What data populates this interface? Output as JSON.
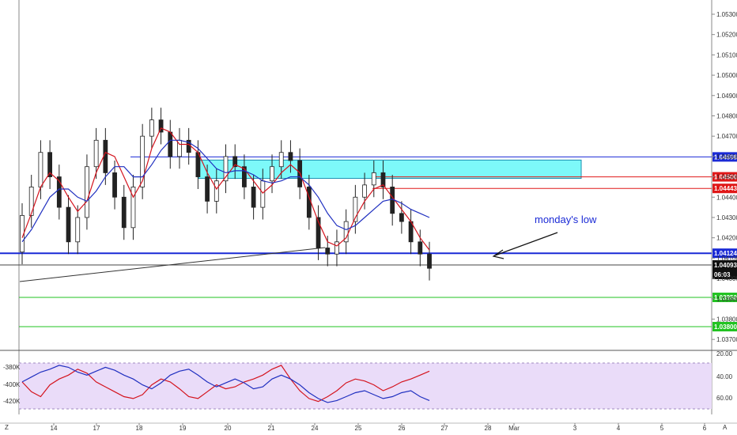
{
  "chart_data": {
    "type": "candlestick",
    "price_axis": {
      "ticks": [
        "1.05300",
        "1.05200",
        "1.05100",
        "1.05000",
        "1.04900",
        "1.04800",
        "1.04700",
        "1.04600",
        "1.04500",
        "1.04400",
        "1.04300",
        "1.04200",
        "1.04100",
        "1.04000",
        "1.03900",
        "1.03800",
        "1.03700"
      ],
      "range": [
        1.0365,
        1.0537
      ]
    },
    "time_axis": {
      "ticks": [
        "14",
        "17",
        "18",
        "19",
        "20",
        "21",
        "24",
        "25",
        "26",
        "27",
        "28",
        "Mar",
        "3",
        "4",
        "5",
        "6"
      ]
    },
    "candles": [
      [
        1.0413,
        1.0431
      ],
      [
        1.0431,
        1.0445
      ],
      [
        1.0445,
        1.0462
      ],
      [
        1.0462,
        1.045
      ],
      [
        1.045,
        1.0435
      ],
      [
        1.0435,
        1.0418
      ],
      [
        1.0418,
        1.043
      ],
      [
        1.043,
        1.0455
      ],
      [
        1.0455,
        1.0468
      ],
      [
        1.0468,
        1.0452
      ],
      [
        1.0452,
        1.044
      ],
      [
        1.044,
        1.0425
      ],
      [
        1.0425,
        1.0445
      ],
      [
        1.0445,
        1.047
      ],
      [
        1.047,
        1.0478
      ],
      [
        1.0478,
        1.0472
      ],
      [
        1.0472,
        1.046
      ],
      [
        1.046,
        1.0468
      ],
      [
        1.0468,
        1.0462
      ],
      [
        1.0462,
        1.045
      ],
      [
        1.045,
        1.0438
      ],
      [
        1.0438,
        1.0448
      ],
      [
        1.0448,
        1.046
      ],
      [
        1.046,
        1.0455
      ],
      [
        1.0455,
        1.0445
      ],
      [
        1.0445,
        1.0435
      ],
      [
        1.0435,
        1.0448
      ],
      [
        1.0448,
        1.0455
      ],
      [
        1.0455,
        1.0462
      ],
      [
        1.0462,
        1.0458
      ],
      [
        1.0458,
        1.0445
      ],
      [
        1.0445,
        1.043
      ],
      [
        1.043,
        1.0415
      ],
      [
        1.0415,
        1.0412
      ],
      [
        1.0412,
        1.0418
      ],
      [
        1.0418,
        1.0428
      ],
      [
        1.0428,
        1.044
      ],
      [
        1.044,
        1.0446
      ],
      [
        1.0446,
        1.0452
      ],
      [
        1.0452,
        1.0445
      ],
      [
        1.0445,
        1.0432
      ],
      [
        1.0432,
        1.0428
      ],
      [
        1.0428,
        1.0418
      ],
      [
        1.0418,
        1.0412
      ],
      [
        1.0412,
        1.0405
      ]
    ],
    "ma_red": [
      1.042,
      1.0432,
      1.0445,
      1.0452,
      1.0448,
      1.044,
      1.0433,
      1.0438,
      1.0452,
      1.0462,
      1.046,
      1.045,
      1.044,
      1.0448,
      1.0464,
      1.0474,
      1.0472,
      1.0466,
      1.0466,
      1.0462,
      1.0452,
      1.0444,
      1.045,
      1.0456,
      1.0454,
      1.0448,
      1.0442,
      1.0446,
      1.0452,
      1.0456,
      1.0452,
      1.044,
      1.0428,
      1.0418,
      1.0416,
      1.042,
      1.043,
      1.0438,
      1.0444,
      1.0446,
      1.044,
      1.0434,
      1.0428,
      1.042,
      1.0414
    ],
    "ma_blue": [
      1.0418,
      1.0424,
      1.0432,
      1.044,
      1.0444,
      1.0444,
      1.044,
      1.0438,
      1.0443,
      1.045,
      1.0455,
      1.0455,
      1.045,
      1.045,
      1.0456,
      1.0463,
      1.0468,
      1.0468,
      1.0467,
      1.0464,
      1.0459,
      1.0454,
      1.0452,
      1.0453,
      1.0453,
      1.0451,
      1.0448,
      1.0447,
      1.0448,
      1.045,
      1.045,
      1.0446,
      1.044,
      1.0432,
      1.0426,
      1.0424,
      1.0426,
      1.043,
      1.0434,
      1.0438,
      1.0439,
      1.0437,
      1.0434,
      1.0432,
      1.043
    ],
    "zone": {
      "top": 1.04598,
      "bottom": 1.045
    },
    "levels": [
      {
        "value": 1.04598,
        "label": "1.04598",
        "color": "#1a2ad6"
      },
      {
        "value": 1.045,
        "label": "1.04500",
        "color": "#e01818"
      },
      {
        "value": 1.04443,
        "label": "1.04443",
        "color": "#e01818"
      },
      {
        "value": 1.04124,
        "label": "1.04124",
        "color": "#1a2ad6"
      }
    ],
    "price_tags": [
      {
        "label": "1.04093",
        "bg": "#111111"
      },
      {
        "label": "06:03",
        "bg": "#111111"
      },
      {
        "label": "1.03950",
        "bg": "#22c322"
      },
      {
        "label": "1.03800",
        "bg": "#22c322"
      }
    ],
    "annotation": "monday's low",
    "oscillator": {
      "left_ticks": [
        "-380K",
        "-400K",
        "-420K"
      ],
      "right_ticks": [
        "20.00",
        "40.00",
        "60.00"
      ],
      "series_red": [
        -395,
        -405,
        -410,
        -398,
        -392,
        -388,
        -382,
        -386,
        -395,
        -400,
        -405,
        -410,
        -412,
        -408,
        -398,
        -392,
        -395,
        -402,
        -410,
        -412,
        -405,
        -398,
        -402,
        -400,
        -395,
        -392,
        -388,
        -382,
        -378,
        -392,
        -404,
        -412,
        -415,
        -410,
        -404,
        -396,
        -392,
        -394,
        -398,
        -404,
        -400,
        -395,
        -392,
        -388,
        -384
      ],
      "series_blue": [
        -395,
        -390,
        -385,
        -382,
        -378,
        -380,
        -385,
        -388,
        -384,
        -380,
        -383,
        -388,
        -392,
        -398,
        -402,
        -396,
        -388,
        -384,
        -382,
        -388,
        -395,
        -400,
        -396,
        -392,
        -396,
        -402,
        -400,
        -392,
        -388,
        -392,
        -398,
        -406,
        -412,
        -416,
        -414,
        -410,
        -406,
        -404,
        -408,
        -412,
        -410,
        -406,
        -404,
        -410,
        -414
      ],
      "range": [
        -425,
        -370
      ]
    }
  },
  "ui": {
    "corner_left": "Z",
    "corner_right": "A"
  }
}
